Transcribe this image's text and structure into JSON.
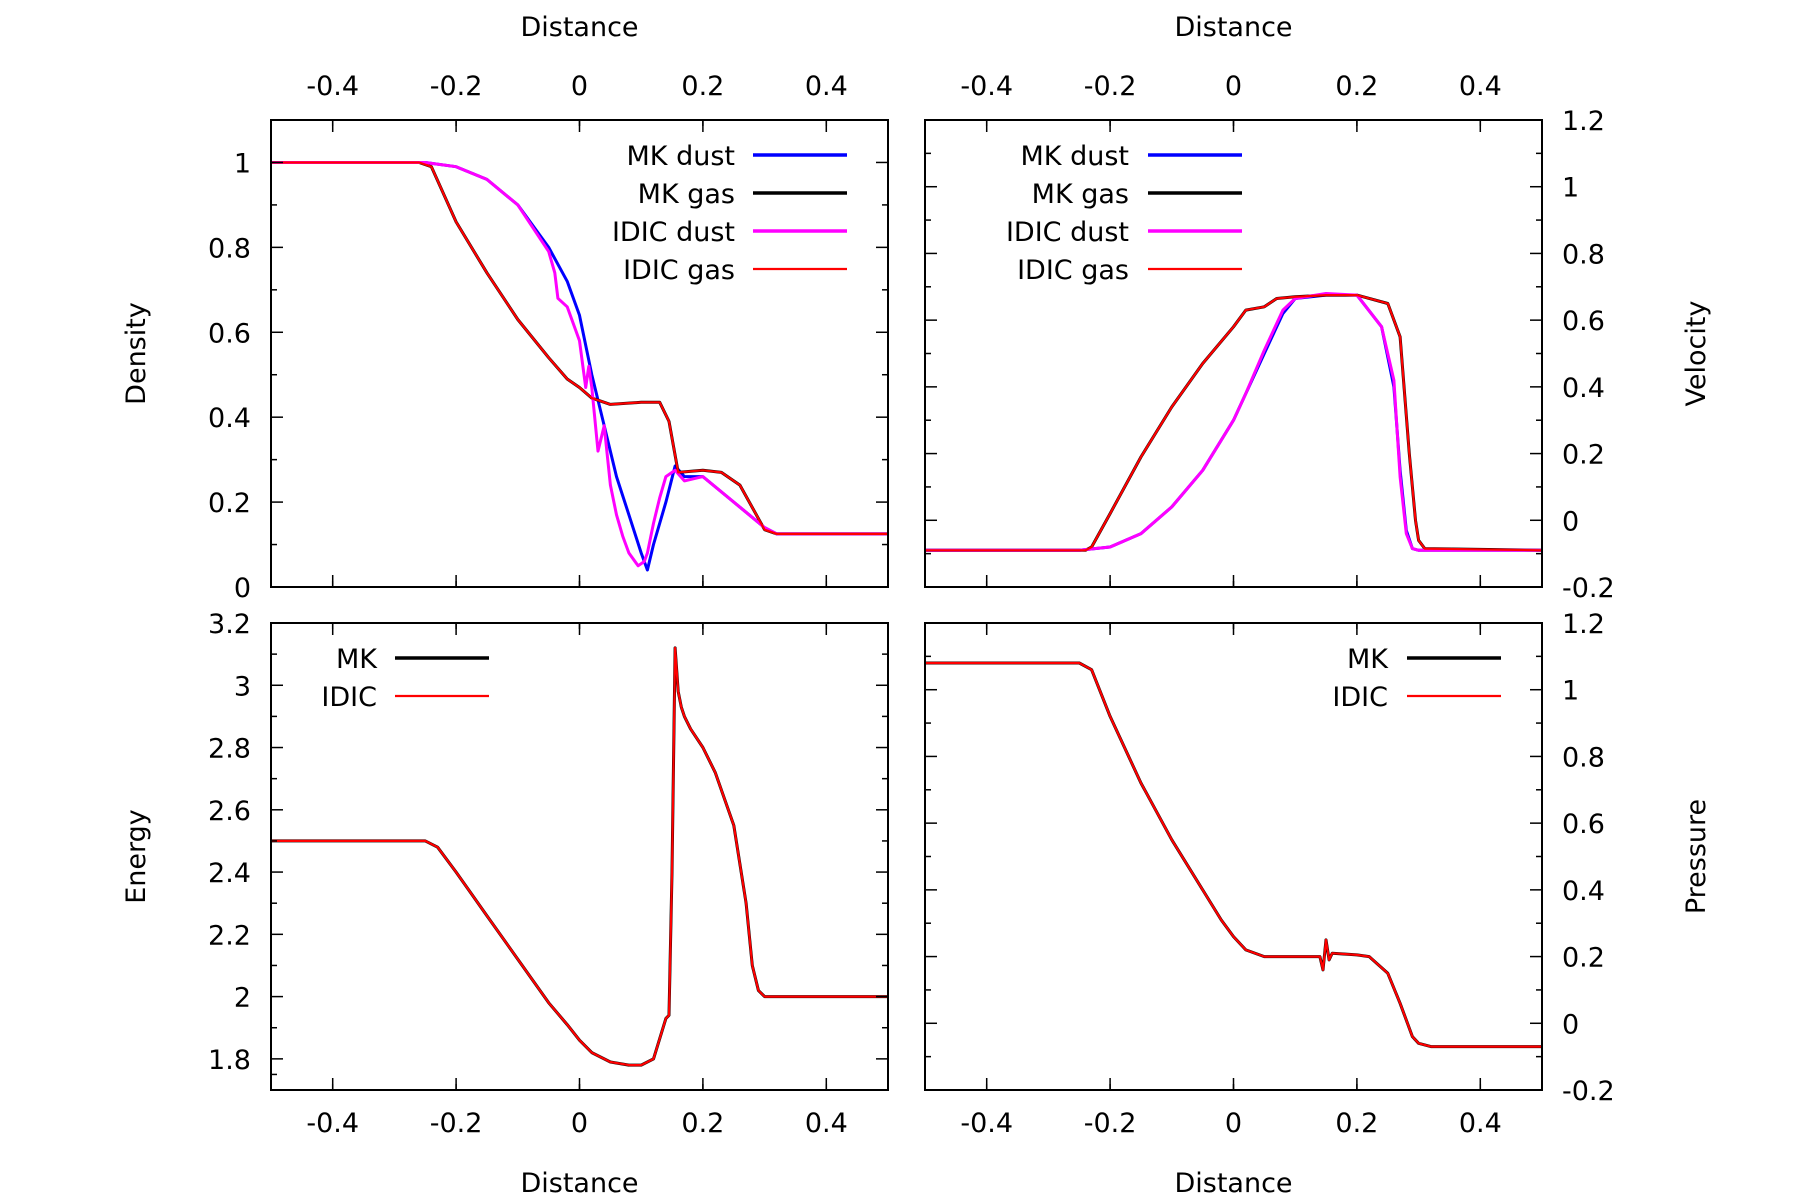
{
  "chart_data": [
    {
      "id": "density",
      "type": "line",
      "title": "",
      "xlabel": "Distance",
      "ylabel": "Density",
      "xlim": [
        -0.5,
        0.5
      ],
      "ylim": [
        0,
        1.1
      ],
      "xticks": [
        -0.4,
        -0.2,
        0,
        0.2,
        0.4
      ],
      "xtick_labels": [
        "-0.4",
        "-0.2",
        "0",
        "0.2",
        "0.4"
      ],
      "yticks": [
        0,
        0.2,
        0.4,
        0.6,
        0.8,
        1
      ],
      "ytick_labels": [
        "0",
        "0.2",
        "0.4",
        "0.6",
        "0.8",
        "1"
      ],
      "legend_position": "top-right",
      "series": [
        {
          "name": "MK dust",
          "color": "#0000ff",
          "x": [
            -0.5,
            -0.25,
            -0.2,
            -0.15,
            -0.1,
            -0.05,
            -0.02,
            0.0,
            0.02,
            0.04,
            0.06,
            0.08,
            0.1,
            0.11,
            0.12,
            0.14,
            0.155,
            0.17,
            0.2,
            0.25,
            0.3,
            0.32,
            0.35,
            0.5
          ],
          "y": [
            1.0,
            1.0,
            0.99,
            0.96,
            0.9,
            0.8,
            0.72,
            0.64,
            0.5,
            0.38,
            0.26,
            0.17,
            0.08,
            0.04,
            0.1,
            0.2,
            0.285,
            0.26,
            0.26,
            0.2,
            0.14,
            0.125,
            0.125,
            0.125
          ]
        },
        {
          "name": "MK gas",
          "color": "#000000",
          "x": [
            -0.5,
            -0.26,
            -0.24,
            -0.2,
            -0.15,
            -0.1,
            -0.05,
            -0.02,
            0.0,
            0.02,
            0.05,
            0.1,
            0.13,
            0.145,
            0.16,
            0.2,
            0.23,
            0.26,
            0.3,
            0.32,
            0.5
          ],
          "y": [
            1.0,
            1.0,
            0.99,
            0.86,
            0.74,
            0.63,
            0.54,
            0.49,
            0.47,
            0.445,
            0.43,
            0.435,
            0.435,
            0.39,
            0.27,
            0.275,
            0.27,
            0.24,
            0.135,
            0.125,
            0.125
          ]
        },
        {
          "name": "IDIC dust",
          "color": "#ff00ff",
          "x": [
            -0.5,
            -0.25,
            -0.2,
            -0.15,
            -0.1,
            -0.05,
            -0.04,
            -0.035,
            -0.02,
            0.0,
            0.01,
            0.015,
            0.02,
            0.03,
            0.04,
            0.05,
            0.06,
            0.07,
            0.08,
            0.095,
            0.105,
            0.11,
            0.12,
            0.13,
            0.14,
            0.155,
            0.17,
            0.2,
            0.25,
            0.3,
            0.32,
            0.35,
            0.5
          ],
          "y": [
            1.0,
            1.0,
            0.99,
            0.96,
            0.9,
            0.79,
            0.74,
            0.68,
            0.66,
            0.58,
            0.47,
            0.52,
            0.47,
            0.32,
            0.38,
            0.24,
            0.17,
            0.12,
            0.08,
            0.05,
            0.06,
            0.08,
            0.15,
            0.21,
            0.26,
            0.275,
            0.25,
            0.26,
            0.2,
            0.14,
            0.125,
            0.125,
            0.125
          ]
        },
        {
          "name": "IDIC gas",
          "color": "#ff0000",
          "x": [
            -0.5,
            -0.26,
            -0.24,
            -0.2,
            -0.15,
            -0.1,
            -0.05,
            -0.02,
            0.0,
            0.02,
            0.05,
            0.1,
            0.13,
            0.145,
            0.16,
            0.2,
            0.23,
            0.26,
            0.3,
            0.32,
            0.5
          ],
          "y": [
            1.0,
            1.0,
            0.99,
            0.86,
            0.74,
            0.63,
            0.54,
            0.49,
            0.47,
            0.445,
            0.43,
            0.435,
            0.435,
            0.39,
            0.27,
            0.275,
            0.27,
            0.24,
            0.135,
            0.125,
            0.125
          ]
        }
      ]
    },
    {
      "id": "velocity",
      "type": "line",
      "title": "",
      "xlabel": "Distance",
      "ylabel": "Velocity",
      "xlim": [
        -0.5,
        0.5
      ],
      "ylim": [
        -0.2,
        1.2
      ],
      "xticks": [
        -0.4,
        -0.2,
        0,
        0.2,
        0.4
      ],
      "xtick_labels": [
        "-0.4",
        "-0.2",
        "0",
        "0.2",
        "0.4"
      ],
      "yticks": [
        -0.2,
        0,
        0.2,
        0.4,
        0.6,
        0.8,
        1,
        1.2
      ],
      "ytick_labels": [
        "-0.2",
        "0",
        "0.2",
        "0.4",
        "0.6",
        "0.8",
        "1",
        "1.2"
      ],
      "legend_position": "top-left",
      "series": [
        {
          "name": "MK dust",
          "color": "#0000ff",
          "x": [
            -0.5,
            -0.25,
            -0.2,
            -0.15,
            -0.1,
            -0.05,
            0.0,
            0.05,
            0.08,
            0.1,
            0.15,
            0.2,
            0.24,
            0.26,
            0.27,
            0.28,
            0.29,
            0.3,
            0.5
          ],
          "y": [
            -0.09,
            -0.09,
            -0.08,
            -0.04,
            0.04,
            0.15,
            0.3,
            0.5,
            0.62,
            0.665,
            0.675,
            0.675,
            0.58,
            0.4,
            0.15,
            -0.03,
            -0.085,
            -0.09,
            -0.09
          ]
        },
        {
          "name": "MK gas",
          "color": "#000000",
          "x": [
            -0.5,
            -0.24,
            -0.23,
            -0.2,
            -0.15,
            -0.1,
            -0.05,
            0.0,
            0.02,
            0.05,
            0.07,
            0.1,
            0.15,
            0.2,
            0.25,
            0.27,
            0.285,
            0.295,
            0.3,
            0.31,
            0.5
          ],
          "y": [
            -0.09,
            -0.09,
            -0.08,
            0.02,
            0.19,
            0.34,
            0.47,
            0.58,
            0.63,
            0.64,
            0.665,
            0.67,
            0.675,
            0.675,
            0.65,
            0.55,
            0.2,
            0.0,
            -0.06,
            -0.085,
            -0.09
          ]
        },
        {
          "name": "IDIC dust",
          "color": "#ff00ff",
          "x": [
            -0.5,
            -0.25,
            -0.2,
            -0.15,
            -0.1,
            -0.05,
            0.0,
            0.02,
            0.05,
            0.08,
            0.1,
            0.15,
            0.2,
            0.24,
            0.26,
            0.27,
            0.28,
            0.29,
            0.3,
            0.5
          ],
          "y": [
            -0.09,
            -0.09,
            -0.08,
            -0.04,
            0.04,
            0.15,
            0.3,
            0.38,
            0.51,
            0.63,
            0.665,
            0.68,
            0.675,
            0.58,
            0.42,
            0.13,
            -0.04,
            -0.085,
            -0.09,
            -0.09
          ]
        },
        {
          "name": "IDIC gas",
          "color": "#ff0000",
          "x": [
            -0.5,
            -0.24,
            -0.23,
            -0.2,
            -0.15,
            -0.1,
            -0.05,
            0.0,
            0.02,
            0.05,
            0.07,
            0.1,
            0.15,
            0.2,
            0.25,
            0.27,
            0.285,
            0.295,
            0.3,
            0.31,
            0.5
          ],
          "y": [
            -0.09,
            -0.09,
            -0.08,
            0.02,
            0.19,
            0.34,
            0.47,
            0.58,
            0.63,
            0.64,
            0.665,
            0.67,
            0.675,
            0.675,
            0.65,
            0.55,
            0.2,
            0.0,
            -0.06,
            -0.085,
            -0.09
          ]
        }
      ]
    },
    {
      "id": "energy",
      "type": "line",
      "title": "",
      "xlabel": "Distance",
      "ylabel": "Energy",
      "xlim": [
        -0.5,
        0.5
      ],
      "ylim": [
        1.7,
        3.2
      ],
      "xticks": [
        -0.4,
        -0.2,
        0,
        0.2,
        0.4
      ],
      "xtick_labels": [
        "-0.4",
        "-0.2",
        "0",
        "0.2",
        "0.4"
      ],
      "yticks": [
        1.8,
        2,
        2.2,
        2.4,
        2.6,
        2.8,
        3,
        3.2
      ],
      "ytick_labels": [
        "1.8",
        "2",
        "2.2",
        "2.4",
        "2.6",
        "2.8",
        "3",
        "3.2"
      ],
      "legend_position": "top-left",
      "series": [
        {
          "name": "MK",
          "color": "#000000",
          "x": [
            -0.5,
            -0.25,
            -0.23,
            -0.2,
            -0.15,
            -0.1,
            -0.05,
            -0.02,
            0.0,
            0.02,
            0.05,
            0.08,
            0.1,
            0.12,
            0.14,
            0.145,
            0.15,
            0.155,
            0.16,
            0.165,
            0.17,
            0.18,
            0.2,
            0.22,
            0.25,
            0.27,
            0.28,
            0.29,
            0.3,
            0.32,
            0.5
          ],
          "y": [
            2.5,
            2.5,
            2.48,
            2.4,
            2.26,
            2.12,
            1.98,
            1.91,
            1.86,
            1.82,
            1.79,
            1.78,
            1.78,
            1.8,
            1.93,
            1.94,
            2.4,
            3.12,
            2.98,
            2.93,
            2.9,
            2.86,
            2.8,
            2.72,
            2.55,
            2.3,
            2.1,
            2.02,
            2.0,
            2.0,
            2.0
          ]
        },
        {
          "name": "IDIC",
          "color": "#ff0000",
          "x": [
            -0.5,
            -0.25,
            -0.23,
            -0.2,
            -0.15,
            -0.1,
            -0.05,
            -0.02,
            0.0,
            0.02,
            0.05,
            0.08,
            0.1,
            0.12,
            0.14,
            0.145,
            0.15,
            0.155,
            0.16,
            0.165,
            0.17,
            0.18,
            0.2,
            0.22,
            0.25,
            0.27,
            0.28,
            0.29,
            0.3,
            0.32,
            0.5
          ],
          "y": [
            2.5,
            2.5,
            2.48,
            2.4,
            2.26,
            2.12,
            1.98,
            1.91,
            1.86,
            1.82,
            1.79,
            1.78,
            1.78,
            1.8,
            1.93,
            1.94,
            2.4,
            3.12,
            2.98,
            2.93,
            2.9,
            2.86,
            2.8,
            2.72,
            2.55,
            2.3,
            2.1,
            2.02,
            2.0,
            2.0,
            2.0
          ]
        }
      ]
    },
    {
      "id": "pressure",
      "type": "line",
      "title": "",
      "xlabel": "Distance",
      "ylabel": "Pressure",
      "xlim": [
        -0.5,
        0.5
      ],
      "ylim": [
        -0.2,
        1.2
      ],
      "xticks": [
        -0.4,
        -0.2,
        0,
        0.2,
        0.4
      ],
      "xtick_labels": [
        "-0.4",
        "-0.2",
        "0",
        "0.2",
        "0.4"
      ],
      "yticks": [
        -0.2,
        0,
        0.2,
        0.4,
        0.6,
        0.8,
        1,
        1.2
      ],
      "ytick_labels": [
        "-0.2",
        "0",
        "0.2",
        "0.4",
        "0.6",
        "0.8",
        "1",
        "1.2"
      ],
      "legend_position": "top-right",
      "series": [
        {
          "name": "MK",
          "color": "#000000",
          "x": [
            -0.5,
            -0.25,
            -0.23,
            -0.2,
            -0.15,
            -0.1,
            -0.05,
            -0.02,
            0.0,
            0.02,
            0.05,
            0.1,
            0.14,
            0.145,
            0.15,
            0.155,
            0.16,
            0.2,
            0.22,
            0.25,
            0.27,
            0.29,
            0.3,
            0.32,
            0.5
          ],
          "y": [
            1.08,
            1.08,
            1.06,
            0.92,
            0.72,
            0.55,
            0.4,
            0.31,
            0.26,
            0.22,
            0.2,
            0.2,
            0.2,
            0.16,
            0.25,
            0.19,
            0.21,
            0.205,
            0.2,
            0.15,
            0.06,
            -0.04,
            -0.06,
            -0.07,
            -0.07
          ]
        },
        {
          "name": "IDIC",
          "color": "#ff0000",
          "x": [
            -0.5,
            -0.25,
            -0.23,
            -0.2,
            -0.15,
            -0.1,
            -0.05,
            -0.02,
            0.0,
            0.02,
            0.05,
            0.1,
            0.14,
            0.145,
            0.15,
            0.155,
            0.16,
            0.2,
            0.22,
            0.25,
            0.27,
            0.29,
            0.3,
            0.32,
            0.5
          ],
          "y": [
            1.08,
            1.08,
            1.06,
            0.92,
            0.72,
            0.55,
            0.4,
            0.31,
            0.26,
            0.22,
            0.2,
            0.2,
            0.2,
            0.16,
            0.25,
            0.19,
            0.21,
            0.205,
            0.2,
            0.15,
            0.06,
            -0.04,
            -0.06,
            -0.07,
            -0.07
          ]
        }
      ]
    }
  ]
}
